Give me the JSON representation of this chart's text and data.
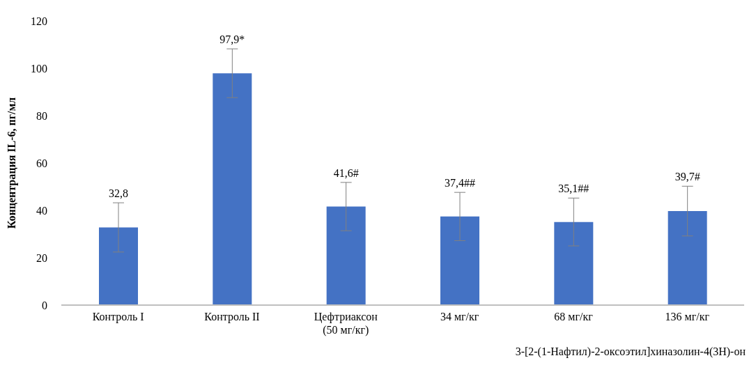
{
  "chart_data": {
    "type": "bar",
    "ylabel": "Концентрация  IL-6, пг/мл",
    "xlabel": "3-[2-(1-Нафтил)-2-оксоэтил]хиназолин-4(3Н)-он",
    "categories": [
      "Контроль I",
      "Контроль II",
      "Цефтриаксон (50 мг/кг)",
      "34 мг/кг",
      "68 мг/кг",
      "136 мг/кг"
    ],
    "values": [
      32.8,
      97.9,
      41.6,
      37.4,
      35.1,
      39.7
    ],
    "errors": [
      10.4,
      10.3,
      10.2,
      10.2,
      10.1,
      10.5
    ],
    "value_labels": [
      "32,8",
      "97,9*",
      "41,6#",
      "37,4##",
      "35,1##",
      "39,7#"
    ],
    "color": "#4472c4",
    "ylim": [
      0,
      120
    ],
    "yticks": [
      0,
      20,
      40,
      60,
      80,
      100,
      120
    ],
    "grid": false,
    "legend": false
  }
}
